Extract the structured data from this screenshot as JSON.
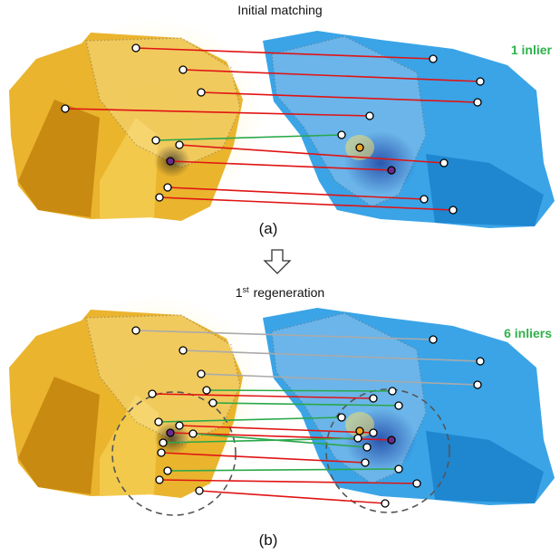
{
  "panels": [
    {
      "title": "Initial matching",
      "inlier_label": "1 inlier",
      "caption": "(a)"
    },
    {
      "title_number": "1",
      "title_superscript": "st",
      "title_rest": "regeneration",
      "inlier_label": "6 inliers",
      "caption": "(b)"
    }
  ]
}
